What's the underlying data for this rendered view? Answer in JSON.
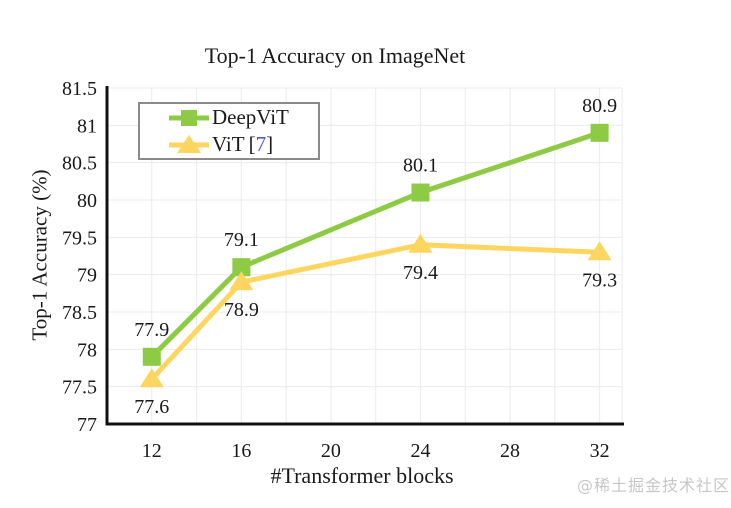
{
  "watermark": "@稀土掘金技术社区",
  "legend": {
    "bracket_open": "[",
    "bracket_close": "]"
  },
  "chart_data": {
    "type": "line",
    "title": "Top-1 Accuracy on ImageNet",
    "xlabel": "#Transformer blocks",
    "ylabel": "Top-1 Accuracy (%)",
    "x": [
      12,
      16,
      24,
      32
    ],
    "series": [
      {
        "name": "DeepViT",
        "values": [
          77.9,
          79.1,
          80.1,
          80.9
        ],
        "color": "#8ecb45",
        "marker": "square",
        "label_position": "above"
      },
      {
        "name": "ViT",
        "citation": "7",
        "values": [
          77.6,
          78.9,
          79.4,
          79.3
        ],
        "color": "#fdd55f",
        "marker": "triangle",
        "label_position": "below"
      }
    ],
    "x_ticks": [
      12,
      16,
      20,
      24,
      28,
      32
    ],
    "y_ticks": [
      77,
      77.5,
      78,
      78.5,
      79,
      79.5,
      80,
      80.5,
      81,
      81.5
    ],
    "xlim": [
      10,
      33
    ],
    "ylim": [
      77,
      81.5
    ],
    "x_grid_step": 2,
    "grid": true,
    "grid_color": "#ebebeb",
    "axis_color": "#111111",
    "citation_color": "#4b5ad8",
    "legend_position": "top-left"
  }
}
